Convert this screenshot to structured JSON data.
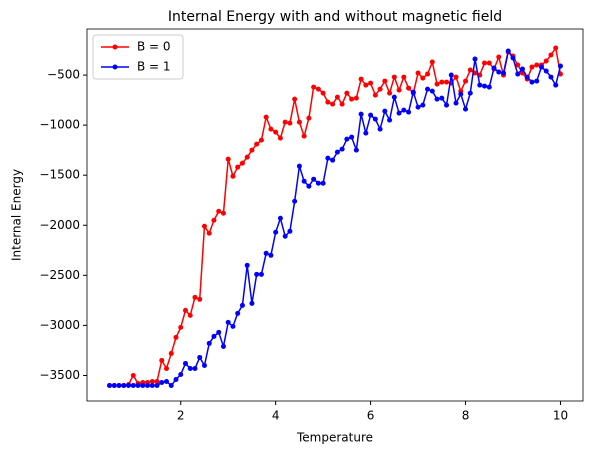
{
  "chart_data": {
    "type": "line",
    "title": "Internal Energy with and without magnetic field",
    "xlabel": "Temperature",
    "ylabel": "Internal Energy",
    "x": [
      0.5,
      0.6,
      0.7,
      0.8,
      0.9,
      1.0,
      1.1,
      1.2,
      1.3,
      1.4,
      1.5,
      1.6,
      1.7,
      1.8,
      1.9,
      2.0,
      2.1,
      2.2,
      2.3,
      2.4,
      2.5,
      2.6,
      2.7,
      2.8,
      2.9,
      3.0,
      3.1,
      3.2,
      3.3,
      3.4,
      3.5,
      3.6,
      3.7,
      3.8,
      3.9,
      4.0,
      4.1,
      4.2,
      4.3,
      4.4,
      4.5,
      4.6,
      4.7,
      4.8,
      4.9,
      5.0,
      5.1,
      5.2,
      5.3,
      5.4,
      5.5,
      5.6,
      5.7,
      5.8,
      5.9,
      6.0,
      6.1,
      6.2,
      6.3,
      6.4,
      6.5,
      6.6,
      6.7,
      6.8,
      6.9,
      7.0,
      7.1,
      7.2,
      7.3,
      7.4,
      7.5,
      7.6,
      7.7,
      7.8,
      7.9,
      8.0,
      8.1,
      8.2,
      8.3,
      8.4,
      8.5,
      8.6,
      8.7,
      8.8,
      8.9,
      9.0,
      9.1,
      9.2,
      9.3,
      9.4,
      9.5,
      9.6,
      9.7,
      9.8,
      9.9,
      10.0
    ],
    "series": [
      {
        "name": "B = 0",
        "color": "#ff0000",
        "values": [
          -3600,
          -3600,
          -3600,
          -3600,
          -3590,
          -3500,
          -3580,
          -3570,
          -3570,
          -3560,
          -3560,
          -3350,
          -3430,
          -3280,
          -3120,
          -3020,
          -2850,
          -2900,
          -2720,
          -2740,
          -2010,
          -2080,
          -1950,
          -1860,
          -1880,
          -1340,
          -1510,
          -1420,
          -1380,
          -1320,
          -1250,
          -1190,
          -1150,
          -920,
          -1040,
          -1070,
          -1130,
          -970,
          -980,
          -740,
          -970,
          -1110,
          -930,
          -620,
          -640,
          -680,
          -770,
          -790,
          -720,
          -790,
          -680,
          -740,
          -730,
          -540,
          -600,
          -580,
          -700,
          -640,
          -560,
          -680,
          -520,
          -650,
          -520,
          -630,
          -680,
          -480,
          -530,
          -490,
          -370,
          -590,
          -570,
          -570,
          -580,
          -520,
          -660,
          -560,
          -450,
          -480,
          -500,
          -380,
          -380,
          -440,
          -320,
          -500,
          -270,
          -310,
          -400,
          -480,
          -540,
          -420,
          -400,
          -400,
          -360,
          -300,
          -230,
          -490
        ]
      },
      {
        "name": "B = 1",
        "color": "#0000ff",
        "values": [
          -3600,
          -3600,
          -3600,
          -3600,
          -3600,
          -3600,
          -3600,
          -3600,
          -3600,
          -3600,
          -3600,
          -3570,
          -3560,
          -3600,
          -3540,
          -3490,
          -3380,
          -3430,
          -3430,
          -3320,
          -3400,
          -3180,
          -3110,
          -3070,
          -3210,
          -2970,
          -3010,
          -2880,
          -2800,
          -2400,
          -2780,
          -2490,
          -2490,
          -2280,
          -2300,
          -2070,
          -1930,
          -2110,
          -2060,
          -1760,
          -1410,
          -1560,
          -1610,
          -1540,
          -1580,
          -1580,
          -1330,
          -1350,
          -1270,
          -1240,
          -1140,
          -1120,
          -1250,
          -890,
          -1080,
          -900,
          -940,
          -1040,
          -860,
          -950,
          -720,
          -880,
          -850,
          -870,
          -670,
          -820,
          -800,
          -640,
          -660,
          -740,
          -730,
          -800,
          -500,
          -780,
          -690,
          -840,
          -680,
          -340,
          -600,
          -610,
          -620,
          -430,
          -470,
          -480,
          -260,
          -330,
          -490,
          -440,
          -520,
          -570,
          -560,
          -420,
          -460,
          -520,
          -600,
          -410
        ]
      }
    ],
    "xlim": [
      0.025,
      10.475
    ],
    "ylim": [
      -3755,
      -40
    ],
    "xticks": [
      2,
      4,
      6,
      8,
      10
    ],
    "yticks": [
      {
        "value": -3500,
        "label": "−3500"
      },
      {
        "value": -3000,
        "label": "−3000"
      },
      {
        "value": -2500,
        "label": "−2500"
      },
      {
        "value": -2000,
        "label": "−2000"
      },
      {
        "value": -1500,
        "label": "−1500"
      },
      {
        "value": -1000,
        "label": "−1000"
      },
      {
        "value": -500,
        "label": "−500"
      }
    ],
    "legend": "upper left"
  }
}
